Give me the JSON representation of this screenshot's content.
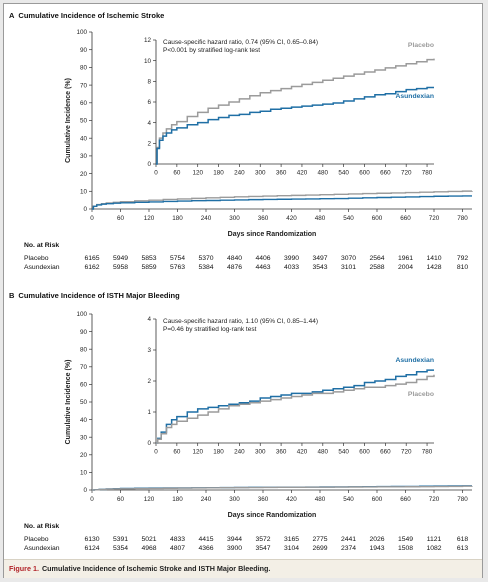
{
  "panels": [
    {
      "letter": "A",
      "title": "Cumulative Incidence of Ischemic Stroke",
      "chart_data": {
        "type": "line",
        "xlabel": "Days since Randomization",
        "ylabel": "Cumulative Incidence (%)",
        "xlim": [
          0,
          800
        ],
        "ylim": [
          0,
          100
        ],
        "xticks": [
          0,
          60,
          120,
          180,
          240,
          300,
          360,
          420,
          480,
          540,
          600,
          660,
          720,
          780
        ],
        "yticks": [
          0,
          10,
          20,
          30,
          40,
          50,
          60,
          70,
          80,
          90,
          100
        ],
        "series": [
          {
            "name": "Placebo",
            "color": "#9b9b9b",
            "x": [
              0,
              3,
              10,
              20,
              30,
              45,
              60,
              90,
              120,
              150,
              180,
              210,
              240,
              270,
              300,
              330,
              360,
              390,
              420,
              450,
              480,
              510,
              540,
              570,
              600,
              630,
              660,
              690,
              720,
              750,
              780,
              800
            ],
            "y": [
              0,
              1.6,
              2.5,
              3.0,
              3.4,
              3.8,
              4.1,
              4.6,
              5.0,
              5.4,
              5.7,
              6.0,
              6.3,
              6.6,
              6.9,
              7.1,
              7.3,
              7.5,
              7.7,
              7.9,
              8.1,
              8.3,
              8.5,
              8.7,
              8.9,
              9.1,
              9.3,
              9.5,
              9.7,
              9.9,
              10.1,
              10.2
            ]
          },
          {
            "name": "Asundexian",
            "color": "#1f6fa5",
            "x": [
              0,
              3,
              10,
              20,
              30,
              45,
              60,
              90,
              120,
              150,
              180,
              210,
              240,
              270,
              300,
              330,
              360,
              390,
              420,
              450,
              480,
              510,
              540,
              570,
              600,
              630,
              660,
              690,
              720,
              750,
              780,
              800
            ],
            "y": [
              0,
              1.5,
              2.3,
              2.7,
              3.0,
              3.3,
              3.5,
              3.8,
              4.0,
              4.3,
              4.5,
              4.7,
              4.8,
              5.0,
              5.1,
              5.3,
              5.4,
              5.5,
              5.6,
              5.7,
              5.8,
              5.9,
              6.1,
              6.3,
              6.5,
              6.7,
              6.8,
              7.0,
              7.2,
              7.3,
              7.4,
              7.4
            ]
          }
        ],
        "inset": {
          "xlim": [
            0,
            800
          ],
          "ylim": [
            0,
            12
          ],
          "xticks": [
            0,
            60,
            120,
            180,
            240,
            300,
            360,
            420,
            480,
            540,
            600,
            660,
            720,
            780
          ],
          "yticks": [
            0,
            2,
            4,
            6,
            8,
            10,
            12
          ],
          "annotation_lines": [
            "Cause-specific hazard ratio, 0.74 (95% CI, 0.65–0.84)",
            "P<0.001 by stratified log-rank test"
          ],
          "series_labels": [
            "Placebo",
            "Asundexian"
          ]
        }
      },
      "risk_table": {
        "header": "No. at Risk",
        "rows": [
          {
            "label": "Placebo",
            "values": [
              6165,
              5949,
              5853,
              5754,
              5370,
              4840,
              4406,
              3990,
              3497,
              3070,
              2564,
              1961,
              1410,
              792
            ]
          },
          {
            "label": "Asundexian",
            "values": [
              6162,
              5958,
              5859,
              5763,
              5384,
              4876,
              4463,
              4033,
              3543,
              3101,
              2588,
              2004,
              1428,
              810
            ]
          }
        ]
      }
    },
    {
      "letter": "B",
      "title": "Cumulative Incidence of ISTH Major Bleeding",
      "chart_data": {
        "type": "line",
        "xlabel": "Days since Randomization",
        "ylabel": "Cumulative Incidence (%)",
        "xlim": [
          0,
          800
        ],
        "ylim": [
          0,
          100
        ],
        "xticks": [
          0,
          60,
          120,
          180,
          240,
          300,
          360,
          420,
          480,
          540,
          600,
          660,
          720,
          780
        ],
        "yticks": [
          0,
          10,
          20,
          30,
          40,
          50,
          60,
          70,
          80,
          90,
          100
        ],
        "series": [
          {
            "name": "Asundexian",
            "color": "#1f6fa5",
            "x": [
              0,
              5,
              15,
              30,
              45,
              60,
              90,
              120,
              150,
              180,
              210,
              240,
              270,
              300,
              330,
              360,
              390,
              420,
              450,
              480,
              510,
              540,
              570,
              600,
              630,
              660,
              690,
              720,
              750,
              780,
              800
            ],
            "y": [
              0,
              0.15,
              0.35,
              0.6,
              0.75,
              0.85,
              1.0,
              1.1,
              1.15,
              1.2,
              1.25,
              1.3,
              1.35,
              1.45,
              1.5,
              1.55,
              1.6,
              1.6,
              1.65,
              1.7,
              1.75,
              1.8,
              1.85,
              1.95,
              2.0,
              2.05,
              2.15,
              2.2,
              2.3,
              2.35,
              2.35
            ]
          },
          {
            "name": "Placebo",
            "color": "#9b9b9b",
            "x": [
              0,
              5,
              15,
              30,
              45,
              60,
              90,
              120,
              150,
              180,
              210,
              240,
              270,
              300,
              330,
              360,
              390,
              420,
              450,
              480,
              510,
              540,
              570,
              600,
              630,
              660,
              690,
              720,
              750,
              780,
              800
            ],
            "y": [
              0,
              0.12,
              0.3,
              0.5,
              0.6,
              0.7,
              0.8,
              0.9,
              1.0,
              1.1,
              1.2,
              1.25,
              1.3,
              1.35,
              1.4,
              1.45,
              1.5,
              1.55,
              1.6,
              1.6,
              1.65,
              1.7,
              1.75,
              1.8,
              1.8,
              1.85,
              1.9,
              1.95,
              2.05,
              2.15,
              2.2
            ]
          }
        ],
        "inset": {
          "xlim": [
            0,
            800
          ],
          "ylim": [
            0,
            4
          ],
          "xticks": [
            0,
            60,
            120,
            180,
            240,
            300,
            360,
            420,
            480,
            540,
            600,
            660,
            720,
            780
          ],
          "yticks": [
            0,
            1,
            2,
            3,
            4
          ],
          "annotation_lines": [
            "Cause-specific hazard ratio, 1.10 (95% CI, 0.85–1.44)",
            "P=0.46 by stratified log-rank test"
          ],
          "series_labels": [
            "Asundexian",
            "Placebo"
          ]
        }
      },
      "risk_table": {
        "header": "No. at Risk",
        "rows": [
          {
            "label": "Placebo",
            "values": [
              6130,
              5391,
              5021,
              4833,
              4415,
              3944,
              3572,
              3165,
              2775,
              2441,
              2026,
              1549,
              1121,
              618
            ]
          },
          {
            "label": "Asundexian",
            "values": [
              6124,
              5354,
              4968,
              4807,
              4366,
              3900,
              3547,
              3104,
              2699,
              2374,
              1943,
              1508,
              1082,
              613
            ]
          }
        ]
      }
    }
  ],
  "caption": {
    "label": "Figure 1.",
    "text": "Cumulative Incidence of Ischemic Stroke and ISTH Major Bleeding."
  }
}
